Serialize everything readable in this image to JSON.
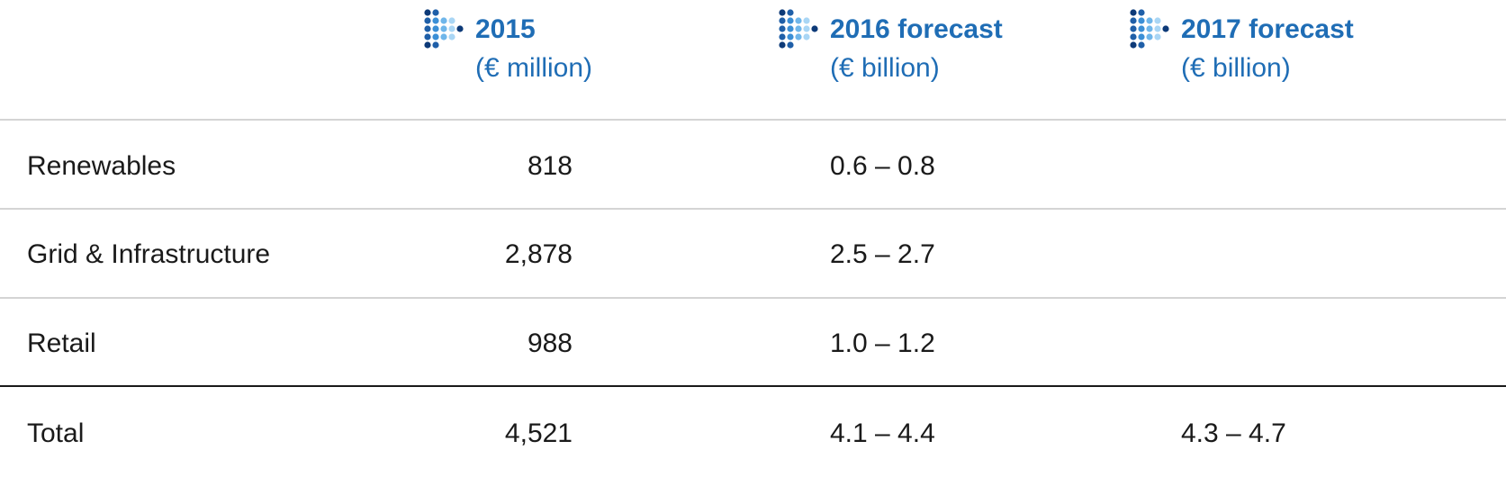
{
  "header": {
    "columns": [
      {
        "title": "2015",
        "unit": "(€ million)"
      },
      {
        "title": "2016 forecast",
        "unit": "(€ billion)"
      },
      {
        "title": "2017 forecast",
        "unit": "(€ billion)"
      }
    ]
  },
  "table": {
    "rows": [
      {
        "label": "Renewables",
        "values": [
          "818",
          "0.6 – 0.8"
        ]
      },
      {
        "label": "Grid & Infrastructure",
        "values": [
          "2,878",
          "2.5 – 2.7"
        ]
      },
      {
        "label": "Retail",
        "values": [
          "988",
          "1.0 – 1.2"
        ]
      },
      {
        "label": "Total",
        "values": [
          "4,521",
          "4.1 – 4.4",
          "4.3 – 4.7"
        ]
      }
    ]
  }
}
